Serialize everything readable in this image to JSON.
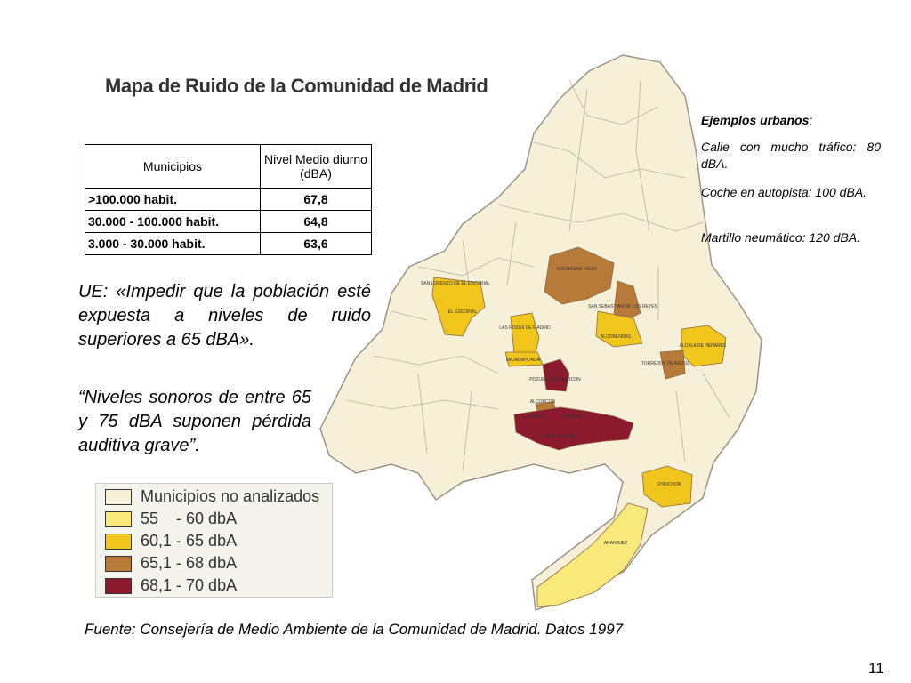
{
  "map": {
    "title": "Mapa de Ruido de la Comunidad de Madrid",
    "labels": [
      "SAN LORENZO DE EL ESCORIAL",
      "EL ESCORIAL",
      "COLMENAR VIEJO",
      "SAN SEBASTIAN DE LOS REYES",
      "ALCOBENDAS",
      "LAS ROZAS DE MADRID",
      "MAJADAHONDA",
      "POZUELO DE ALARCON",
      "ALCORCON",
      "LEGANES",
      "GETAFE",
      "FUENLABRADA",
      "ALCALA DE HENARES",
      "TORREJON DE ARDOZ",
      "CHINCHON",
      "ARANJUEZ"
    ],
    "legend": [
      {
        "label": "Municipios no analizados",
        "color": "#f7f0d8"
      },
      {
        "label": "55    - 60 dbA",
        "color": "#f8e97a"
      },
      {
        "label": "60,1 - 65 dbA",
        "color": "#f0c51c"
      },
      {
        "label": "65,1 - 68 dbA",
        "color": "#b87a38"
      },
      {
        "label": "68,1 - 70 dbA",
        "color": "#8b1a2e"
      }
    ]
  },
  "table": {
    "header": [
      "Municipios",
      "Nivel Medio diurno (dBA)"
    ],
    "rows": [
      [
        ">100.000 habit.",
        "67,8"
      ],
      [
        "30.000 - 100.000 habit.",
        "64,8"
      ],
      [
        "3.000 - 30.000 habit.",
        "63,6"
      ]
    ]
  },
  "quotes": [
    "UE: «Impedir que la población esté expuesta a niveles de ruido superiores a 65 dBA».",
    "“Niveles sonoros de entre 65 y 75 dBA suponen pérdida auditiva grave”."
  ],
  "examples": {
    "title": "Ejemplos urbanos",
    "items": [
      "Calle con mucho tráfico: 80 dBA.",
      "Coche en autopista: 100 dBA.",
      "Martillo neumático: 120 dBA."
    ]
  },
  "source": "Fuente: Consejería de Medio Ambiente de la Comunidad de Madrid. Datos 1997",
  "page_number": "11"
}
